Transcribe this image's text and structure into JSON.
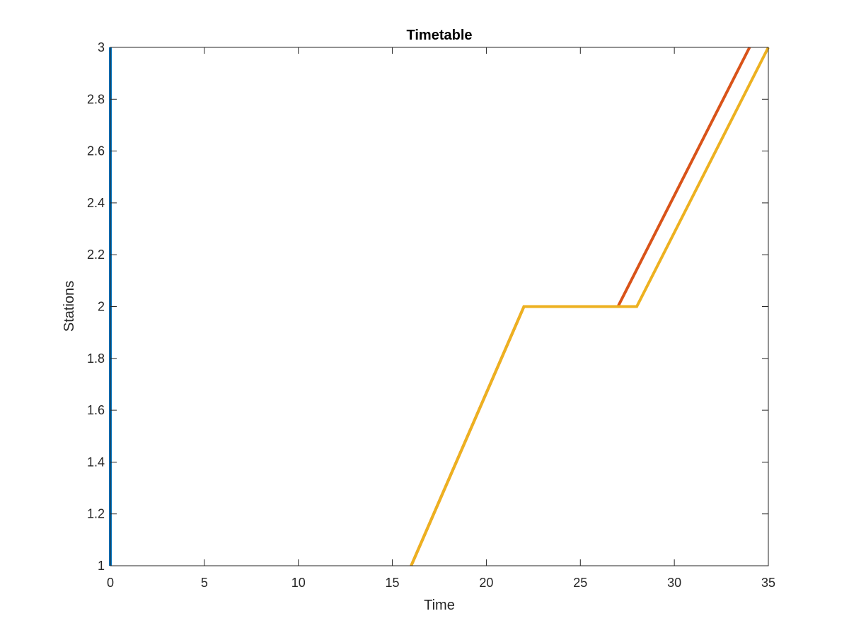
{
  "chart_data": {
    "type": "line",
    "title": "Timetable",
    "xlabel": "Time",
    "ylabel": "Stations",
    "xlim": [
      0,
      35
    ],
    "ylim": [
      1,
      3
    ],
    "xticks": [
      0,
      5,
      10,
      15,
      20,
      25,
      30,
      35
    ],
    "yticks": [
      1,
      1.2,
      1.4,
      1.6,
      1.8,
      2,
      2.2,
      2.4,
      2.6,
      2.8,
      3
    ],
    "grid": false,
    "box": true,
    "series": [
      {
        "color": "#0072BD",
        "x": [
          0,
          0
        ],
        "y": [
          1,
          3
        ]
      },
      {
        "color": "#D95319",
        "x": [
          16,
          22,
          27,
          34
        ],
        "y": [
          1,
          2,
          2,
          3
        ]
      },
      {
        "color": "#EDB120",
        "x": [
          16,
          22,
          28,
          35
        ],
        "y": [
          1,
          2,
          2,
          3
        ]
      }
    ]
  }
}
